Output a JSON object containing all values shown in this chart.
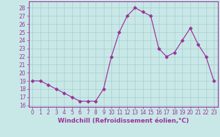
{
  "x": [
    0,
    1,
    2,
    3,
    4,
    5,
    6,
    7,
    8,
    9,
    10,
    11,
    12,
    13,
    14,
    15,
    16,
    17,
    18,
    19,
    20,
    21,
    22,
    23
  ],
  "y": [
    19,
    19,
    18.5,
    18,
    17.5,
    17,
    16.5,
    16.5,
    16.5,
    18,
    22,
    25,
    27,
    28,
    27.5,
    27,
    23,
    22,
    22.5,
    24,
    25.5,
    23.5,
    22,
    19
  ],
  "line_color": "#993399",
  "marker": "D",
  "marker_size": 2.5,
  "xlabel": "Windchill (Refroidissement éolien,°C)",
  "xlabel_fontsize": 6.5,
  "ylim": [
    15.8,
    28.8
  ],
  "yticks": [
    16,
    17,
    18,
    19,
    20,
    21,
    22,
    23,
    24,
    25,
    26,
    27,
    28
  ],
  "xticks": [
    0,
    1,
    2,
    3,
    4,
    5,
    6,
    7,
    8,
    9,
    10,
    11,
    12,
    13,
    14,
    15,
    16,
    17,
    18,
    19,
    20,
    21,
    22,
    23
  ],
  "background_color": "#c8e8e8",
  "grid_color": "#a8caca",
  "tick_fontsize": 5.5
}
